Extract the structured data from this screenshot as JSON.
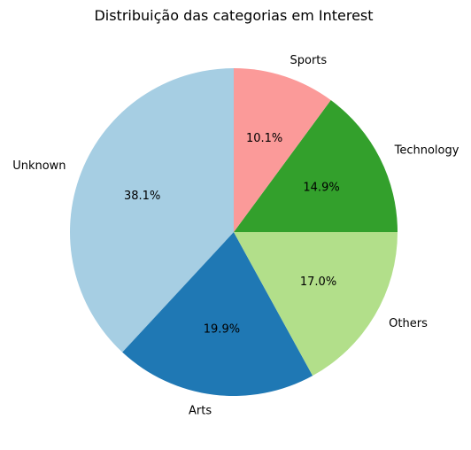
{
  "chart_data": {
    "type": "pie",
    "title": "Distribuição das categorias em Interest",
    "start_angle_deg": 90,
    "direction": "counterclockwise",
    "slices": [
      {
        "label": "Unknown",
        "pct": 38.1,
        "pct_text": "38.1%",
        "color": "#a6cee3"
      },
      {
        "label": "Arts",
        "pct": 19.9,
        "pct_text": "19.9%",
        "color": "#1f78b4"
      },
      {
        "label": "Others",
        "pct": 17.0,
        "pct_text": "17.0%",
        "color": "#b2df8a"
      },
      {
        "label": "Technology",
        "pct": 14.9,
        "pct_text": "14.9%",
        "color": "#33a02c"
      },
      {
        "label": "Sports",
        "pct": 10.1,
        "pct_text": "10.1%",
        "color": "#fb9a99"
      }
    ]
  }
}
